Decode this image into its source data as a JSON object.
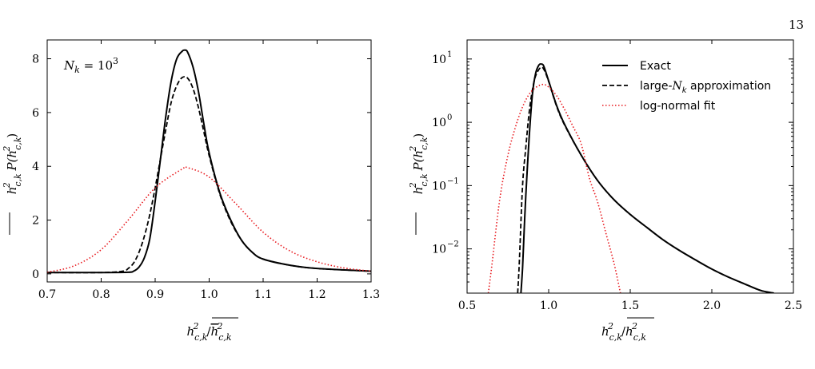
{
  "page_number": "13",
  "colors": {
    "exact": "#000000",
    "large_nk": "#000000",
    "lognormal": "#e8191e"
  },
  "chart_data": [
    {
      "type": "line",
      "annotation": "N_k = 10^3",
      "xlabel": "h²_{c,k}/h²_{c,k} (overlined)",
      "ylabel": "h²_{c,k} P(h²_{c,k})",
      "xlim": [
        0.7,
        1.3
      ],
      "ylim": [
        -0.3,
        8.7
      ],
      "xticks": [
        0.7,
        0.8,
        0.9,
        1.0,
        1.1,
        1.2,
        1.3
      ],
      "xtick_labels": [
        "0.7",
        "0.8",
        "0.9",
        "1.0",
        "1.1",
        "1.2",
        "1.3"
      ],
      "yticks": [
        0,
        2,
        4,
        6,
        8
      ],
      "ytick_labels": [
        "0",
        "2",
        "4",
        "6",
        "8"
      ],
      "series": [
        {
          "key": "exact",
          "style": "solid",
          "x": [
            0.7,
            0.8,
            0.85,
            0.86,
            0.87,
            0.88,
            0.89,
            0.9,
            0.91,
            0.92,
            0.93,
            0.94,
            0.95,
            0.955,
            0.96,
            0.97,
            0.98,
            0.99,
            1.0,
            1.02,
            1.04,
            1.06,
            1.08,
            1.1,
            1.15,
            1.2,
            1.3
          ],
          "y": [
            0.05,
            0.05,
            0.06,
            0.1,
            0.25,
            0.6,
            1.3,
            2.7,
            4.3,
            5.9,
            7.2,
            8.0,
            8.28,
            8.32,
            8.25,
            7.7,
            6.8,
            5.6,
            4.5,
            3.0,
            2.0,
            1.25,
            0.8,
            0.55,
            0.32,
            0.2,
            0.1
          ]
        },
        {
          "key": "large_nk",
          "style": "dashed",
          "x": [
            0.7,
            0.8,
            0.84,
            0.85,
            0.86,
            0.87,
            0.88,
            0.89,
            0.9,
            0.91,
            0.92,
            0.93,
            0.94,
            0.95,
            0.96,
            0.97,
            0.98,
            0.99,
            1.0,
            1.02,
            1.04,
            1.06,
            1.08,
            1.1,
            1.15,
            1.2,
            1.3
          ],
          "y": [
            0.05,
            0.05,
            0.1,
            0.2,
            0.4,
            0.8,
            1.4,
            2.2,
            3.2,
            4.3,
            5.4,
            6.4,
            7.0,
            7.3,
            7.28,
            6.9,
            6.2,
            5.3,
            4.4,
            2.95,
            1.95,
            1.25,
            0.8,
            0.55,
            0.32,
            0.2,
            0.1
          ]
        },
        {
          "key": "lognormal",
          "style": "dotted",
          "x": [
            0.7,
            0.75,
            0.8,
            0.85,
            0.9,
            0.95,
            0.96,
            1.0,
            1.05,
            1.1,
            1.15,
            1.2,
            1.25,
            1.3
          ],
          "y": [
            0.06,
            0.3,
            0.9,
            2.0,
            3.2,
            3.9,
            3.95,
            3.6,
            2.6,
            1.55,
            0.85,
            0.45,
            0.22,
            0.1
          ]
        }
      ]
    },
    {
      "type": "line",
      "y_scale": "log",
      "xlabel": "h²_{c,k}/h²_{c,k} (overlined)",
      "ylabel": "h²_{c,k} P(h²_{c,k})",
      "xlim": [
        0.5,
        2.5
      ],
      "ylim": [
        0.002,
        20
      ],
      "xticks": [
        0.5,
        1.0,
        1.5,
        2.0,
        2.5
      ],
      "xtick_labels": [
        "0.5",
        "1.0",
        "1.5",
        "2.0",
        "2.5"
      ],
      "yticks": [
        0.01,
        0.1,
        1,
        10
      ],
      "ytick_labels": [
        {
          "base": "10",
          "exp": "−2"
        },
        {
          "base": "10",
          "exp": "−1"
        },
        {
          "base": "10",
          "exp": "0"
        },
        {
          "base": "10",
          "exp": "1"
        }
      ],
      "legend": {
        "placement": "top-right",
        "entries": [
          {
            "key": "exact",
            "label": "Exact"
          },
          {
            "key": "large_nk",
            "label_prefix": "large-",
            "label_math": "N",
            "label_sub": "k",
            "label_suffix": " approximation"
          },
          {
            "key": "lognormal",
            "label": "log-normal fit"
          }
        ]
      },
      "series": [
        {
          "key": "exact",
          "style": "solid",
          "x": [
            0.83,
            0.84,
            0.85,
            0.86,
            0.88,
            0.9,
            0.92,
            0.94,
            0.955,
            0.97,
            1.0,
            1.05,
            1.1,
            1.2,
            1.3,
            1.4,
            1.5,
            1.6,
            1.7,
            1.8,
            1.9,
            2.0,
            2.1,
            2.2,
            2.3,
            2.38
          ],
          "y": [
            0.002,
            0.005,
            0.02,
            0.07,
            0.55,
            2.7,
            5.9,
            8.0,
            8.3,
            7.7,
            4.5,
            1.8,
            0.9,
            0.3,
            0.12,
            0.06,
            0.035,
            0.022,
            0.014,
            0.0095,
            0.0067,
            0.0048,
            0.0036,
            0.0028,
            0.0022,
            0.002
          ]
        },
        {
          "key": "large_nk",
          "style": "dashed",
          "x": [
            0.81,
            0.82,
            0.84,
            0.86,
            0.88,
            0.9,
            0.92,
            0.95,
            0.97,
            1.0,
            1.05,
            1.1,
            1.2,
            1.3,
            1.4,
            1.5,
            1.6,
            1.7,
            1.8,
            1.9,
            2.0,
            2.1,
            2.2,
            2.3,
            2.38
          ],
          "y": [
            0.002,
            0.006,
            0.1,
            0.4,
            1.4,
            3.2,
            5.4,
            7.3,
            6.9,
            4.4,
            1.75,
            0.88,
            0.3,
            0.12,
            0.06,
            0.035,
            0.022,
            0.014,
            0.0095,
            0.0067,
            0.0048,
            0.0036,
            0.0028,
            0.0022,
            0.002
          ]
        },
        {
          "key": "lognormal",
          "style": "dotted",
          "x": [
            0.63,
            0.65,
            0.7,
            0.75,
            0.8,
            0.85,
            0.9,
            0.96,
            1.0,
            1.05,
            1.1,
            1.15,
            1.2,
            1.25,
            1.3,
            1.35,
            1.4,
            1.44
          ],
          "y": [
            0.002,
            0.005,
            0.06,
            0.3,
            0.9,
            2.0,
            3.2,
            3.95,
            3.6,
            2.6,
            1.55,
            0.85,
            0.45,
            0.13,
            0.055,
            0.018,
            0.006,
            0.002
          ]
        }
      ]
    }
  ]
}
